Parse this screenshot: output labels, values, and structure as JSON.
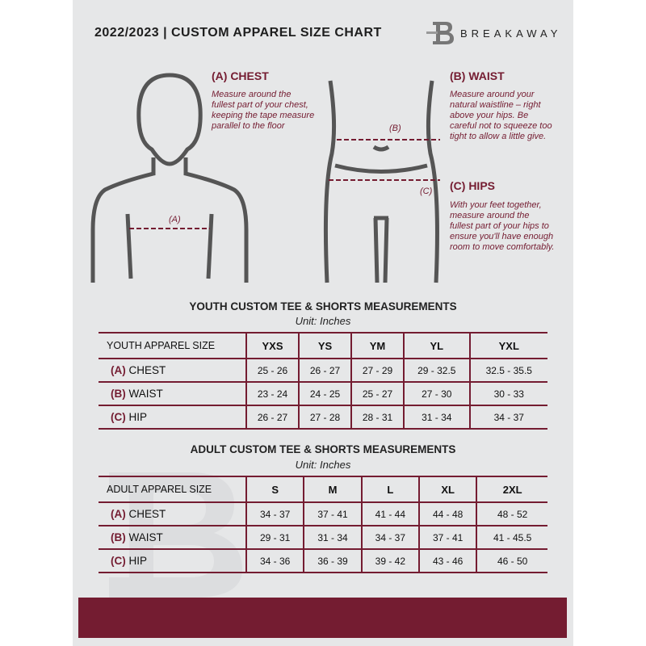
{
  "header": {
    "title": "2022/2023  |  CUSTOM APPAREL SIZE CHART",
    "brand": "BREAKAWAY",
    "brand_logo_letter": "B"
  },
  "guide": {
    "chest": {
      "title": "(A) CHEST",
      "text": "Measure around the fullest part of your chest, keeping the tape measure parallel to the floor",
      "marker": "(A)"
    },
    "waist": {
      "title": "(B) WAIST",
      "text": "Measure around your natural waistline – right above your hips. Be careful not to squeeze too tight to allow a little give.",
      "marker": "(B)"
    },
    "hips": {
      "title": "(C) HIPS",
      "text": "With your feet together, measure around the fullest part of your hips to ensure you'll have enough room to move comfortably.",
      "marker": "(C)"
    }
  },
  "youth": {
    "title": "YOUTH CUSTOM TEE & SHORTS MEASUREMENTS",
    "unit": "Unit: Inches",
    "size_label": "YOUTH APPAREL SIZE",
    "sizes": [
      "YXS",
      "YS",
      "YM",
      "YL",
      "YXL"
    ],
    "rows": [
      {
        "code": "(A)",
        "name": "CHEST",
        "values": [
          "25 - 26",
          "26 - 27",
          "27 - 29",
          "29 - 32.5",
          "32.5 - 35.5"
        ]
      },
      {
        "code": "(B)",
        "name": "WAIST",
        "values": [
          "23 - 24",
          "24 - 25",
          "25 - 27",
          "27 - 30",
          "30 - 33"
        ]
      },
      {
        "code": "(C)",
        "name": "HIP",
        "values": [
          "26 - 27",
          "27 - 28",
          "28 - 31",
          "31 - 34",
          "34 - 37"
        ]
      }
    ]
  },
  "adult": {
    "title": "ADULT CUSTOM TEE & SHORTS MEASUREMENTS",
    "unit": "Unit: Inches",
    "size_label": "ADULT APPAREL SIZE",
    "sizes": [
      "S",
      "M",
      "L",
      "XL",
      "2XL"
    ],
    "rows": [
      {
        "code": "(A)",
        "name": "CHEST",
        "values": [
          "34 - 37",
          "37 - 41",
          "41 - 44",
          "44 - 48",
          "48 - 52"
        ]
      },
      {
        "code": "(B)",
        "name": "WAIST",
        "values": [
          "29 - 31",
          "31 - 34",
          "34 - 37",
          "37 - 41",
          "41 - 45.5"
        ]
      },
      {
        "code": "(C)",
        "name": "HIP",
        "values": [
          "34 - 36",
          "36 - 39",
          "39 - 42",
          "43 - 46",
          "46 - 50"
        ]
      }
    ]
  },
  "colors": {
    "accent": "#741c31",
    "background": "#e6e7e8"
  }
}
